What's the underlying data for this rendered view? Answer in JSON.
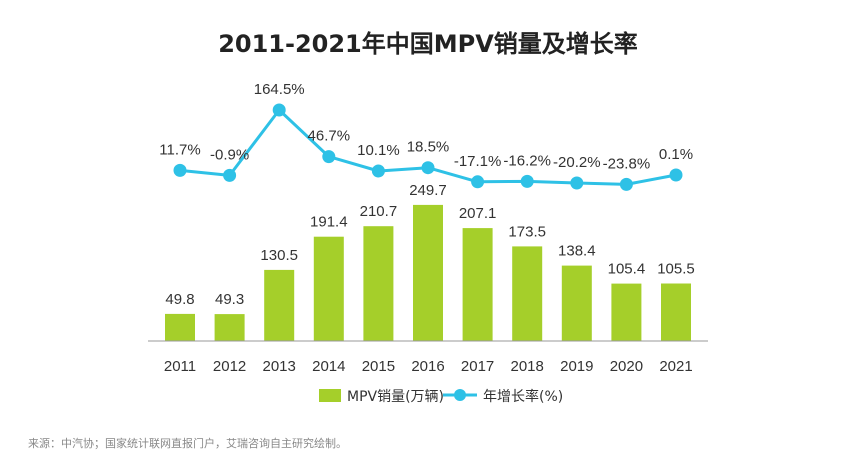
{
  "chart_data": {
    "type": "bar",
    "title": "2011-2021年中国MPV销量及增长率",
    "categories": [
      "2011",
      "2012",
      "2013",
      "2014",
      "2015",
      "2016",
      "2017",
      "2018",
      "2019",
      "2020",
      "2021"
    ],
    "series": [
      {
        "name": "MPV销量(万辆)",
        "type": "bar",
        "values": [
          49.8,
          49.3,
          130.5,
          191.4,
          210.7,
          249.7,
          207.1,
          173.5,
          138.4,
          105.4,
          105.5
        ],
        "labels": [
          "49.8",
          "49.3",
          "130.5",
          "191.4",
          "210.7",
          "249.7",
          "207.1",
          "173.5",
          "138.4",
          "105.4",
          "105.5"
        ],
        "color": "#a5cf2a"
      },
      {
        "name": "年增长率(%)",
        "type": "line",
        "values": [
          11.7,
          -0.9,
          164.5,
          46.7,
          10.1,
          18.5,
          -17.1,
          -16.2,
          -20.2,
          -23.8,
          0.1
        ],
        "labels": [
          "11.7%",
          "-0.9%",
          "164.5%",
          "46.7%",
          "10.1%",
          "18.5%",
          "-17.1%",
          "-16.2%",
          "-20.2%",
          "-23.8%",
          "0.1%"
        ],
        "color": "#2ec1e6"
      }
    ],
    "legend_position": "bottom",
    "grid": false
  },
  "source_note": "来源：中汽协；国家统计联网直报门户，艾瑞咨询自主研究绘制。"
}
